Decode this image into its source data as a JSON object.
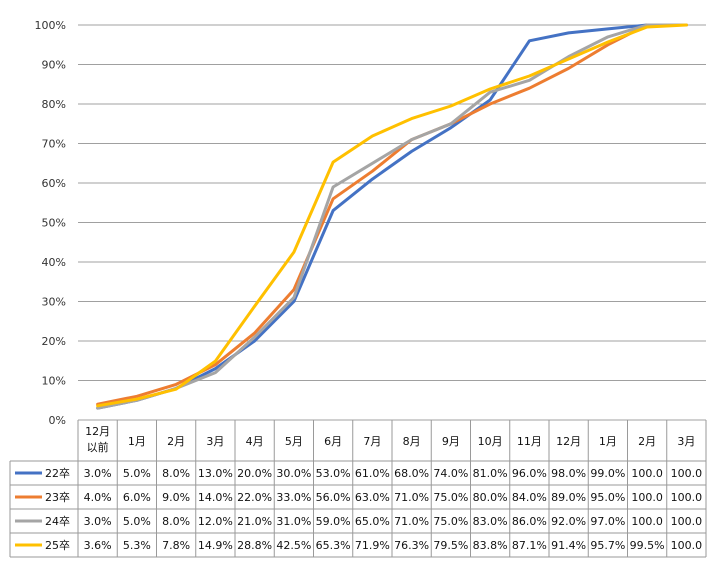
{
  "chart_data": {
    "type": "line",
    "title": "",
    "xlabel": "",
    "ylabel": "",
    "ylim": [
      0,
      100
    ],
    "y_unit": "%",
    "y_ticks": [
      "0%",
      "10%",
      "20%",
      "30%",
      "40%",
      "50%",
      "60%",
      "70%",
      "80%",
      "90%",
      "100%"
    ],
    "categories": [
      {
        "line1": "12月",
        "line2": "以前"
      },
      {
        "line1": "1月",
        "line2": ""
      },
      {
        "line1": "2月",
        "line2": ""
      },
      {
        "line1": "3月",
        "line2": ""
      },
      {
        "line1": "4月",
        "line2": ""
      },
      {
        "line1": "5月",
        "line2": ""
      },
      {
        "line1": "6月",
        "line2": ""
      },
      {
        "line1": "7月",
        "line2": ""
      },
      {
        "line1": "8月",
        "line2": ""
      },
      {
        "line1": "9月",
        "line2": ""
      },
      {
        "line1": "10月",
        "line2": ""
      },
      {
        "line1": "11月",
        "line2": ""
      },
      {
        "line1": "12月",
        "line2": ""
      },
      {
        "line1": "1月",
        "line2": ""
      },
      {
        "line1": "2月",
        "line2": ""
      },
      {
        "line1": "3月",
        "line2": ""
      }
    ],
    "grid": true,
    "legend": "data-table-left",
    "series": [
      {
        "name": "22卒",
        "color": "#4472c4",
        "values": [
          3.0,
          5.0,
          8.0,
          13.0,
          20.0,
          30.0,
          53.0,
          61.0,
          68.0,
          74.0,
          81.0,
          96.0,
          98.0,
          99.0,
          100.0,
          100.0
        ],
        "labels": [
          "3.0%",
          "5.0%",
          "8.0%",
          "13.0%",
          "20.0%",
          "30.0%",
          "53.0%",
          "61.0%",
          "68.0%",
          "74.0%",
          "81.0%",
          "96.0%",
          "98.0%",
          "99.0%",
          "100.0",
          "100.0"
        ]
      },
      {
        "name": "23卒",
        "color": "#ed7d31",
        "values": [
          4.0,
          6.0,
          9.0,
          14.0,
          22.0,
          33.0,
          56.0,
          63.0,
          71.0,
          75.0,
          80.0,
          84.0,
          89.0,
          95.0,
          100.0,
          100.0
        ],
        "labels": [
          "4.0%",
          "6.0%",
          "9.0%",
          "14.0%",
          "22.0%",
          "33.0%",
          "56.0%",
          "63.0%",
          "71.0%",
          "75.0%",
          "80.0%",
          "84.0%",
          "89.0%",
          "95.0%",
          "100.0",
          "100.0"
        ]
      },
      {
        "name": "24卒",
        "color": "#a5a5a5",
        "values": [
          3.0,
          5.0,
          8.0,
          12.0,
          21.0,
          31.0,
          59.0,
          65.0,
          71.0,
          75.0,
          83.0,
          86.0,
          92.0,
          97.0,
          100.0,
          100.0
        ],
        "labels": [
          "3.0%",
          "5.0%",
          "8.0%",
          "12.0%",
          "21.0%",
          "31.0%",
          "59.0%",
          "65.0%",
          "71.0%",
          "75.0%",
          "83.0%",
          "86.0%",
          "92.0%",
          "97.0%",
          "100.0",
          "100.0"
        ]
      },
      {
        "name": "25卒",
        "color": "#ffc000",
        "values": [
          3.6,
          5.3,
          7.8,
          14.9,
          28.8,
          42.5,
          65.3,
          71.9,
          76.3,
          79.5,
          83.8,
          87.1,
          91.4,
          95.7,
          99.5,
          100.0
        ],
        "labels": [
          "3.6%",
          "5.3%",
          "7.8%",
          "14.9%",
          "28.8%",
          "42.5%",
          "65.3%",
          "71.9%",
          "76.3%",
          "79.5%",
          "83.8%",
          "87.1%",
          "91.4%",
          "95.7%",
          "99.5%",
          "100.0"
        ]
      }
    ]
  }
}
